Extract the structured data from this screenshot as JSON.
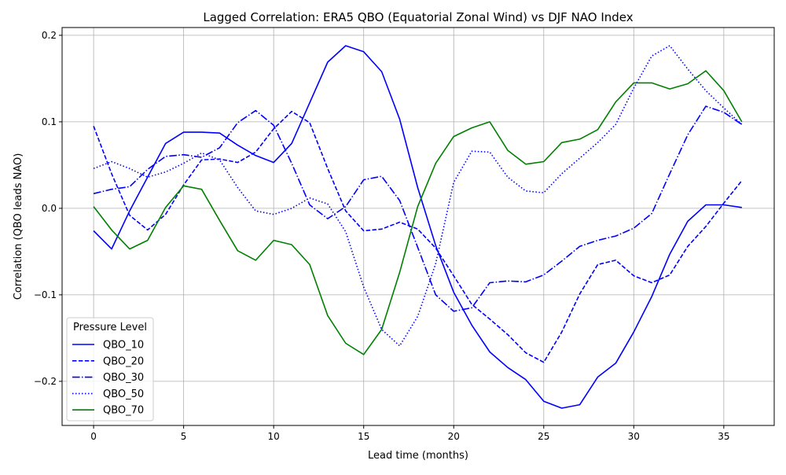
{
  "chart_data": {
    "type": "line",
    "title": "Lagged Correlation: ERA5 QBO (Equatorial Zonal Wind) vs DJF NAO Index",
    "xlabel": "Lead time (months)",
    "ylabel": "Correlation (QBO leads NAO)",
    "xlim": [
      -1.75,
      37.8
    ],
    "ylim": [
      -0.251,
      0.209
    ],
    "xticks": [
      0,
      5,
      10,
      15,
      20,
      25,
      30,
      35
    ],
    "xtick_labels": [
      "0",
      "5",
      "10",
      "15",
      "20",
      "25",
      "30",
      "35"
    ],
    "yticks": [
      -0.2,
      -0.1,
      0.0,
      0.1,
      0.2
    ],
    "ytick_labels": [
      "−0.2",
      "−0.1",
      "0.0",
      "0.1",
      "0.2"
    ],
    "grid": true,
    "legend": {
      "title": "Pressure Level",
      "placement": "lower-left"
    },
    "x": [
      0,
      1,
      2,
      3,
      4,
      5,
      6,
      7,
      8,
      9,
      10,
      11,
      12,
      13,
      14,
      15,
      16,
      17,
      18,
      19,
      20,
      21,
      22,
      23,
      24,
      25,
      26,
      27,
      28,
      29,
      30,
      31,
      32,
      33,
      34,
      35,
      36
    ],
    "series": [
      {
        "name": "QBO_10",
        "color": "#0000ff",
        "style": "solid",
        "values": [
          -0.026,
          -0.047,
          -0.003,
          0.036,
          0.075,
          0.088,
          0.088,
          0.087,
          0.073,
          0.061,
          0.053,
          0.075,
          0.122,
          0.169,
          0.188,
          0.181,
          0.158,
          0.103,
          0.024,
          -0.043,
          -0.097,
          -0.135,
          -0.166,
          -0.184,
          -0.198,
          -0.223,
          -0.231,
          -0.227,
          -0.195,
          -0.179,
          -0.143,
          -0.102,
          -0.053,
          -0.015,
          0.004,
          0.004,
          0.001
        ]
      },
      {
        "name": "QBO_20",
        "color": "#0000ff",
        "style": "dashed",
        "values": [
          0.095,
          0.04,
          -0.008,
          -0.025,
          -0.007,
          0.027,
          0.056,
          0.057,
          0.053,
          0.065,
          0.092,
          0.112,
          0.099,
          0.046,
          -0.003,
          -0.026,
          -0.024,
          -0.016,
          -0.024,
          -0.046,
          -0.078,
          -0.111,
          -0.128,
          -0.146,
          -0.167,
          -0.178,
          -0.143,
          -0.099,
          -0.065,
          -0.06,
          -0.078,
          -0.086,
          -0.077,
          -0.044,
          -0.021,
          0.006,
          0.032
        ]
      },
      {
        "name": "QBO_30",
        "color": "#0000ff",
        "style": "dashdot",
        "values": [
          0.017,
          0.022,
          0.025,
          0.045,
          0.06,
          0.062,
          0.059,
          0.07,
          0.099,
          0.113,
          0.096,
          0.052,
          0.004,
          -0.012,
          0.002,
          0.033,
          0.037,
          0.009,
          -0.045,
          -0.1,
          -0.119,
          -0.115,
          -0.086,
          -0.084,
          -0.085,
          -0.077,
          -0.061,
          -0.044,
          -0.037,
          -0.032,
          -0.023,
          -0.006,
          0.04,
          0.085,
          0.118,
          0.111,
          0.097
        ]
      },
      {
        "name": "QBO_50",
        "color": "#0000ff",
        "style": "dotted",
        "values": [
          0.046,
          0.054,
          0.046,
          0.036,
          0.042,
          0.052,
          0.064,
          0.056,
          0.024,
          -0.003,
          -0.007,
          0.0,
          0.012,
          0.005,
          -0.027,
          -0.091,
          -0.14,
          -0.159,
          -0.125,
          -0.064,
          0.03,
          0.066,
          0.065,
          0.036,
          0.02,
          0.018,
          0.04,
          0.058,
          0.076,
          0.097,
          0.139,
          0.176,
          0.188,
          0.161,
          0.136,
          0.116,
          0.097
        ]
      },
      {
        "name": "QBO_70",
        "color": "#008000",
        "style": "solid",
        "values": [
          0.002,
          -0.025,
          -0.047,
          -0.037,
          0.001,
          0.026,
          0.022,
          -0.014,
          -0.049,
          -0.06,
          -0.037,
          -0.042,
          -0.065,
          -0.124,
          -0.156,
          -0.169,
          -0.14,
          -0.074,
          0.002,
          0.052,
          0.083,
          0.093,
          0.1,
          0.067,
          0.051,
          0.054,
          0.076,
          0.08,
          0.091,
          0.123,
          0.145,
          0.145,
          0.138,
          0.144,
          0.159,
          0.136,
          0.1
        ]
      }
    ]
  }
}
